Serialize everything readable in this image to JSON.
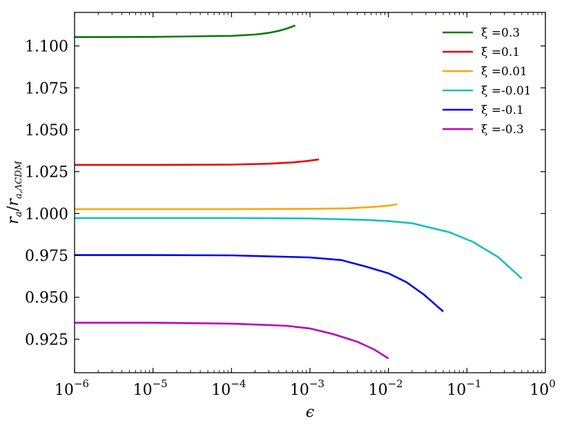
{
  "chart_data": {
    "type": "line",
    "xscale": "log",
    "xlim": [
      1e-06,
      1
    ],
    "ylim": [
      0.905,
      1.12
    ],
    "xlabel": "ϵ",
    "ylabel": "r_a / r_a,ΛCDM",
    "ylabel_main": "r",
    "ylabel_main_sub": "a",
    "ylabel_slash": "/",
    "ylabel_denom": "r",
    "ylabel_denom_sub": "a,ΛCDM",
    "legend_position": "top-right",
    "grid": false,
    "xticks": [
      {
        "value": 1e-06,
        "base": "10",
        "exp": "−6"
      },
      {
        "value": 1e-05,
        "base": "10",
        "exp": "−5"
      },
      {
        "value": 0.0001,
        "base": "10",
        "exp": "−4"
      },
      {
        "value": 0.001,
        "base": "10",
        "exp": "−3"
      },
      {
        "value": 0.01,
        "base": "10",
        "exp": "−2"
      },
      {
        "value": 0.1,
        "base": "10",
        "exp": "−1"
      },
      {
        "value": 1,
        "base": "10",
        "exp": "0"
      }
    ],
    "yticks": [
      {
        "value": 0.925,
        "label": "0.925"
      },
      {
        "value": 0.95,
        "label": "0.950"
      },
      {
        "value": 0.975,
        "label": "0.975"
      },
      {
        "value": 1.0,
        "label": "1.000"
      },
      {
        "value": 1.025,
        "label": "1.025"
      },
      {
        "value": 1.05,
        "label": "1.050"
      },
      {
        "value": 1.075,
        "label": "1.075"
      },
      {
        "value": 1.1,
        "label": "1.100"
      }
    ],
    "series": [
      {
        "name": "ξ =0.3",
        "color": "#007a00",
        "x": [
          1e-06,
          1e-05,
          0.0001,
          0.0002,
          0.0003,
          0.0004,
          0.0005,
          0.00065
        ],
        "y": [
          1.1053,
          1.1054,
          1.106,
          1.1068,
          1.1078,
          1.109,
          1.1103,
          1.1122
        ]
      },
      {
        "name": "ξ =0.1",
        "color": "#ee0000",
        "x": [
          1e-06,
          1e-05,
          0.0001,
          0.0003,
          0.0006,
          0.0009,
          0.0013
        ],
        "y": [
          1.029,
          1.029,
          1.0292,
          1.0297,
          1.0305,
          1.0313,
          1.0323
        ]
      },
      {
        "name": "ξ =0.01",
        "color": "#ffa500",
        "x": [
          1e-06,
          1e-05,
          0.0001,
          0.001,
          0.003,
          0.006,
          0.01,
          0.013
        ],
        "y": [
          1.0026,
          1.0026,
          1.0026,
          1.0028,
          1.0031,
          1.0038,
          1.0047,
          1.0055
        ]
      },
      {
        "name": "ξ =-0.01",
        "color": "#17bfbf",
        "x": [
          1e-06,
          0.0001,
          0.001,
          0.005,
          0.01,
          0.02,
          0.03,
          0.06,
          0.12,
          0.25,
          0.5
        ],
        "y": [
          0.9973,
          0.9973,
          0.997,
          0.9962,
          0.9955,
          0.9942,
          0.9922,
          0.9888,
          0.983,
          0.974,
          0.9612
        ]
      },
      {
        "name": "ξ =-0.1",
        "color": "#0000ee",
        "x": [
          1e-06,
          1e-05,
          0.0001,
          0.001,
          0.0025,
          0.005,
          0.01,
          0.017,
          0.028,
          0.05
        ],
        "y": [
          0.9752,
          0.9752,
          0.975,
          0.9738,
          0.9722,
          0.9685,
          0.9643,
          0.959,
          0.9518,
          0.9415
        ]
      },
      {
        "name": "ξ =-0.3",
        "color": "#bb00bb",
        "x": [
          1e-06,
          1e-05,
          0.0001,
          0.0005,
          0.001,
          0.002,
          0.004,
          0.0065,
          0.01
        ],
        "y": [
          0.9348,
          0.9348,
          0.9343,
          0.933,
          0.9314,
          0.928,
          0.9235,
          0.919,
          0.9135
        ]
      }
    ]
  }
}
